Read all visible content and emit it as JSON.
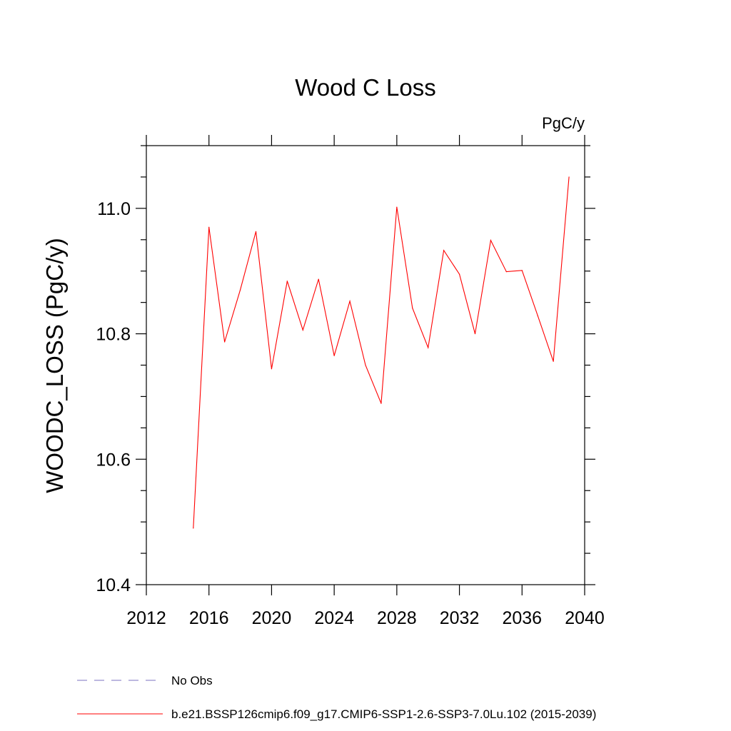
{
  "chart_data": {
    "type": "line",
    "title": "Wood C Loss",
    "units_label": "PgC/y",
    "ylabel": "WOODC_LOSS  (PgC/y)",
    "xlabel": "",
    "xlim": [
      2012,
      2040
    ],
    "ylim": [
      10.4,
      11.1
    ],
    "x_ticks": [
      2012,
      2016,
      2020,
      2024,
      2028,
      2032,
      2036,
      2040
    ],
    "x_minor_step": 4,
    "y_ticks": [
      10.4,
      10.6,
      10.8,
      11.0
    ],
    "y_tick_labels": [
      "10.4",
      "10.6",
      "10.8",
      "11.0"
    ],
    "y_minor_step": 0.05,
    "grid": false,
    "series": [
      {
        "name": "b.e21.BSSP126cmip6.f09_g17.CMIP6-SSP1-2.6-SSP3-7.0Lu.102 (2015-2039)",
        "color": "#ff0000",
        "style": "solid",
        "x": [
          2015,
          2016,
          2017,
          2018,
          2019,
          2020,
          2021,
          2022,
          2023,
          2024,
          2025,
          2026,
          2027,
          2028,
          2029,
          2030,
          2031,
          2032,
          2033,
          2034,
          2035,
          2036,
          2037,
          2038,
          2039
        ],
        "values": [
          10.49,
          10.97,
          10.787,
          10.87,
          10.963,
          10.744,
          10.884,
          10.806,
          10.887,
          10.765,
          10.852,
          10.75,
          10.689,
          11.002,
          10.841,
          10.778,
          10.933,
          10.895,
          10.8,
          10.949,
          10.899,
          10.901,
          10.829,
          10.756,
          11.05
        ]
      }
    ],
    "legend": [
      {
        "label": "No Obs",
        "color": "#7b72c0",
        "style": "dashed"
      },
      {
        "label": "b.e21.BSSP126cmip6.f09_g17.CMIP6-SSP1-2.6-SSP3-7.0Lu.102 (2015-2039)",
        "color": "#ff0000",
        "style": "solid"
      }
    ],
    "legend_position": "bottom-left"
  }
}
